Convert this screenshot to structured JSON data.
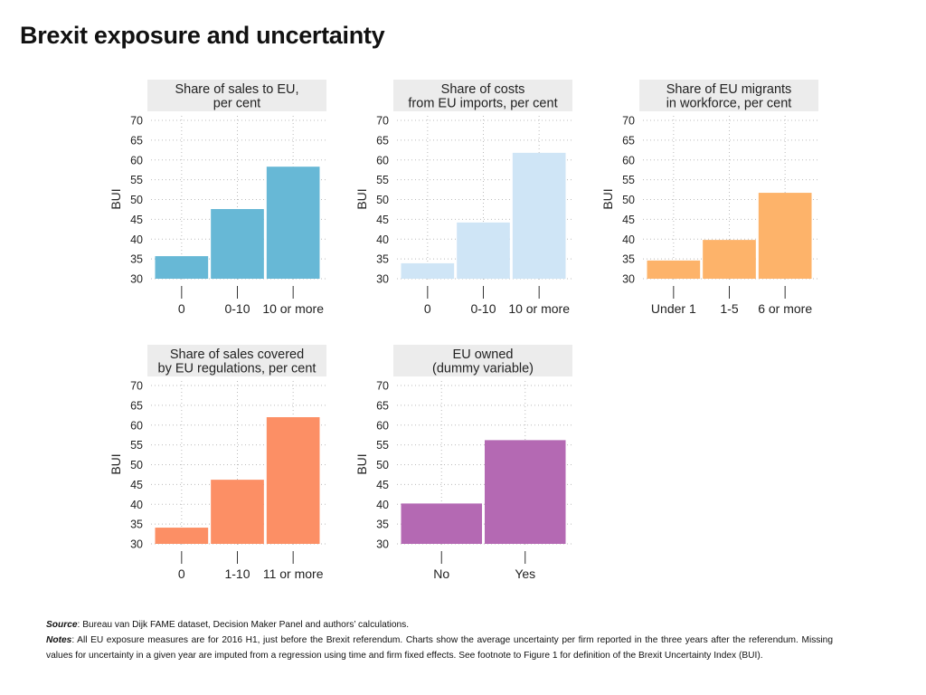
{
  "title": "Brexit exposure and uncertainty",
  "chart_data": [
    {
      "type": "bar",
      "title": [
        "Share of sales to EU,",
        "per cent"
      ],
      "ylabel": "BUI",
      "ylim": [
        30,
        70
      ],
      "yticks": [
        30,
        35,
        40,
        45,
        50,
        55,
        60,
        65,
        70
      ],
      "grid": true,
      "categories": [
        "0",
        "0-10",
        "10 or more"
      ],
      "values": [
        35.7,
        47.6,
        58.3
      ],
      "color": "#67b8d6"
    },
    {
      "type": "bar",
      "title": [
        "Share of costs",
        "from EU imports, per cent"
      ],
      "ylabel": "BUI",
      "ylim": [
        30,
        70
      ],
      "yticks": [
        30,
        35,
        40,
        45,
        50,
        55,
        60,
        65,
        70
      ],
      "grid": true,
      "categories": [
        "0",
        "0-10",
        "10 or more"
      ],
      "values": [
        33.9,
        44.2,
        61.8
      ],
      "color": "#cfe5f6"
    },
    {
      "type": "bar",
      "title": [
        "Share of EU migrants",
        "in workforce, per cent"
      ],
      "ylabel": "BUI",
      "ylim": [
        30,
        70
      ],
      "yticks": [
        30,
        35,
        40,
        45,
        50,
        55,
        60,
        65,
        70
      ],
      "grid": true,
      "categories": [
        "Under 1",
        "1-5",
        "6 or more"
      ],
      "values": [
        34.6,
        39.8,
        51.7
      ],
      "color": "#fdb36a"
    },
    {
      "type": "bar",
      "title": [
        "Share of sales covered",
        "by EU regulations, per cent"
      ],
      "ylabel": "BUI",
      "ylim": [
        30,
        70
      ],
      "yticks": [
        30,
        35,
        40,
        45,
        50,
        55,
        60,
        65,
        70
      ],
      "grid": true,
      "categories": [
        "0",
        "1-10",
        "11 or more"
      ],
      "values": [
        34.1,
        46.2,
        62.0
      ],
      "color": "#fc8f65"
    },
    {
      "type": "bar",
      "title": [
        "EU owned",
        "(dummy variable)"
      ],
      "ylabel": "BUI",
      "ylim": [
        30,
        70
      ],
      "yticks": [
        30,
        35,
        40,
        45,
        50,
        55,
        60,
        65,
        70
      ],
      "grid": true,
      "categories": [
        "No",
        "Yes"
      ],
      "values": [
        40.2,
        56.2
      ],
      "color": "#b469b3"
    }
  ],
  "notes": {
    "source_label": "Source",
    "source_text": ": Bureau van Dijk FAME dataset, Decision Maker Panel and authors’ calculations.",
    "notes_label": "Notes",
    "notes_text": ": All EU exposure measures are for 2016 H1, just before the Brexit referendum. Charts show the average uncertainty per firm reported in the three years after the referendum. Missing values for uncertainty in a given year are imputed from a regression using time and firm fixed effects. See footnote to Figure 1 for definition of the Brexit Uncertainty Index (BUI)."
  }
}
